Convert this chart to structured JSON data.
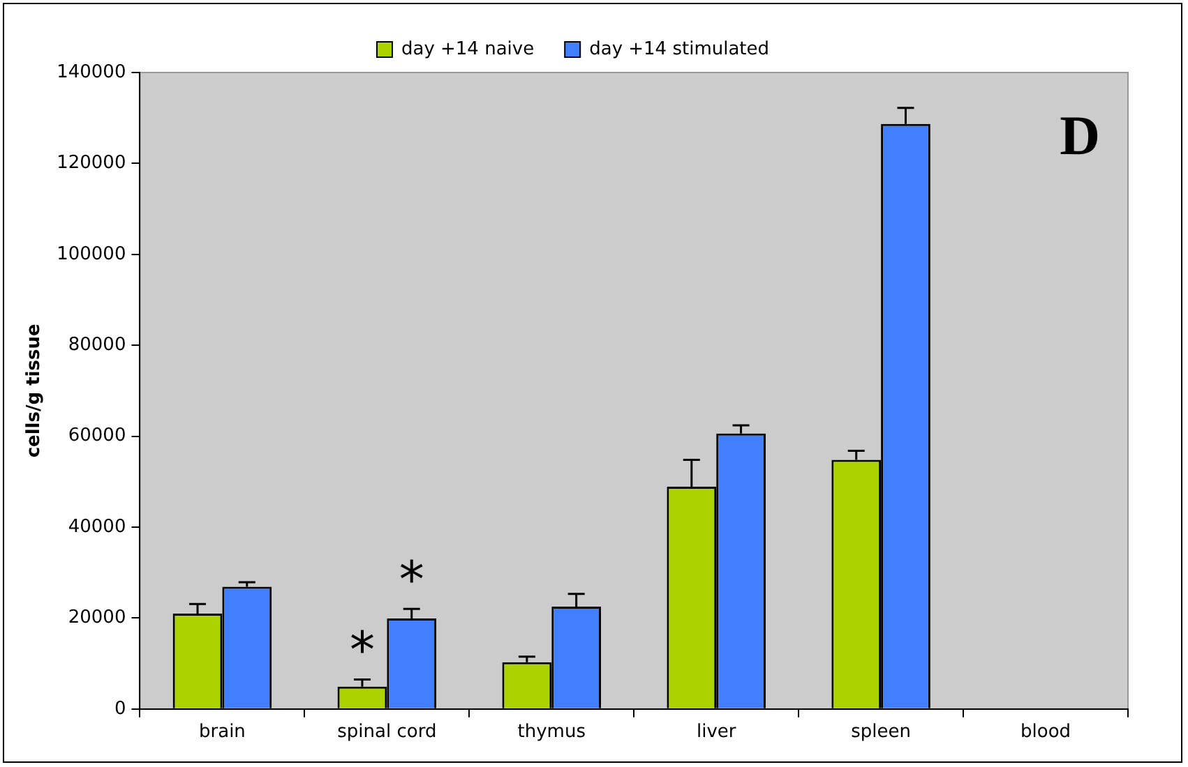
{
  "chart_data": {
    "type": "bar",
    "ylabel": "cells/g tissue",
    "categories": [
      "brain",
      "spinal cord",
      "thymus",
      "liver",
      "spleen",
      "blood"
    ],
    "series": [
      {
        "name": "day +14 naive",
        "color": "#acd200",
        "values": [
          21000,
          4900,
          10300,
          48900,
          54800,
          0
        ],
        "errors": [
          2100,
          1600,
          1200,
          5900,
          2000,
          null
        ],
        "value_labels": [
          null,
          "*",
          null,
          null,
          null,
          null
        ]
      },
      {
        "name": "day +14 stimulated",
        "color": "#427ffe",
        "values": [
          26900,
          19900,
          22500,
          60600,
          128700,
          0
        ],
        "errors": [
          1000,
          2100,
          2800,
          1800,
          3500,
          null
        ],
        "value_labels": [
          null,
          "*",
          null,
          null,
          null,
          null
        ]
      }
    ],
    "ylim": [
      0,
      140000
    ],
    "yticks": [
      0,
      20000,
      40000,
      60000,
      80000,
      100000,
      120000,
      140000
    ],
    "grid": false,
    "legend": "top",
    "annotations": [
      "D"
    ]
  }
}
